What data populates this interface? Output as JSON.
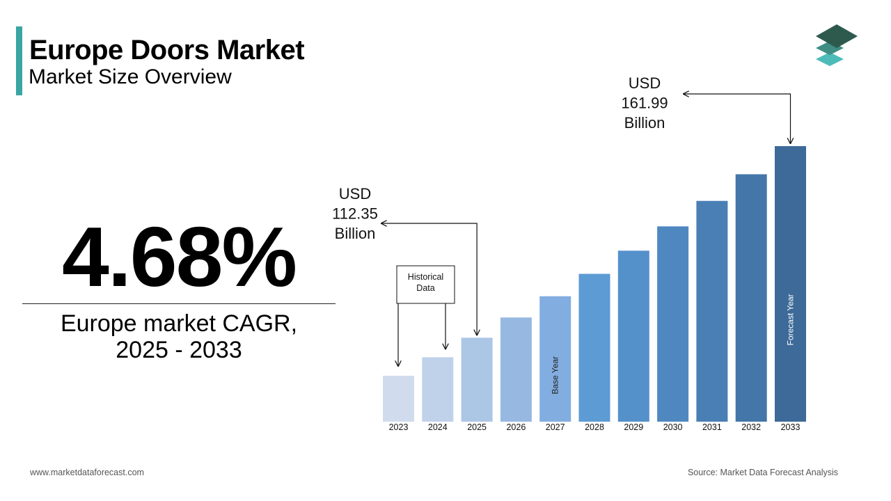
{
  "header": {
    "title": "Europe Doors Market",
    "subtitle": "Market Size Overview"
  },
  "kpi": {
    "value": "4.68%",
    "label_line1": "Europe market CAGR,",
    "label_line2": "2025 - 2033"
  },
  "footer": {
    "website": "www.marketdataforecast.com",
    "source": "Source: Market Data Forecast Analysis"
  },
  "logo": {
    "icon": "layered-diamonds-logo-icon",
    "colors": [
      "#2e5a4e",
      "#3f8d83",
      "#4dbcb8"
    ]
  },
  "chart_data": {
    "type": "bar",
    "categories": [
      "2023",
      "2024",
      "2025",
      "2026",
      "2027",
      "2028",
      "2029",
      "2030",
      "2031",
      "2032",
      "2033"
    ],
    "values": [
      102.5,
      107.3,
      112.35,
      117.6,
      123.1,
      128.9,
      134.9,
      141.2,
      147.8,
      154.7,
      161.99
    ],
    "colors": [
      "#d0dcee",
      "#c0d1ea",
      "#acc6e6",
      "#97b9e1",
      "#82ade0",
      "#5d9bd4",
      "#5491cb",
      "#4f88c0",
      "#4a7fb5",
      "#4476a9",
      "#3d6a98"
    ],
    "callouts": [
      {
        "lines": [
          "USD",
          "112.35",
          "Billion"
        ],
        "category": "2025"
      },
      {
        "lines": [
          "USD",
          "161.99",
          "Billion"
        ],
        "category": "2033"
      }
    ],
    "historical_box": {
      "lines": [
        "Historical",
        "Data"
      ]
    },
    "bar_labels": [
      {
        "category": "2027",
        "text": "Base Year",
        "color": "#222222"
      },
      {
        "category": "2033",
        "text": "Forecast Year",
        "color": "#ffffff"
      }
    ]
  }
}
